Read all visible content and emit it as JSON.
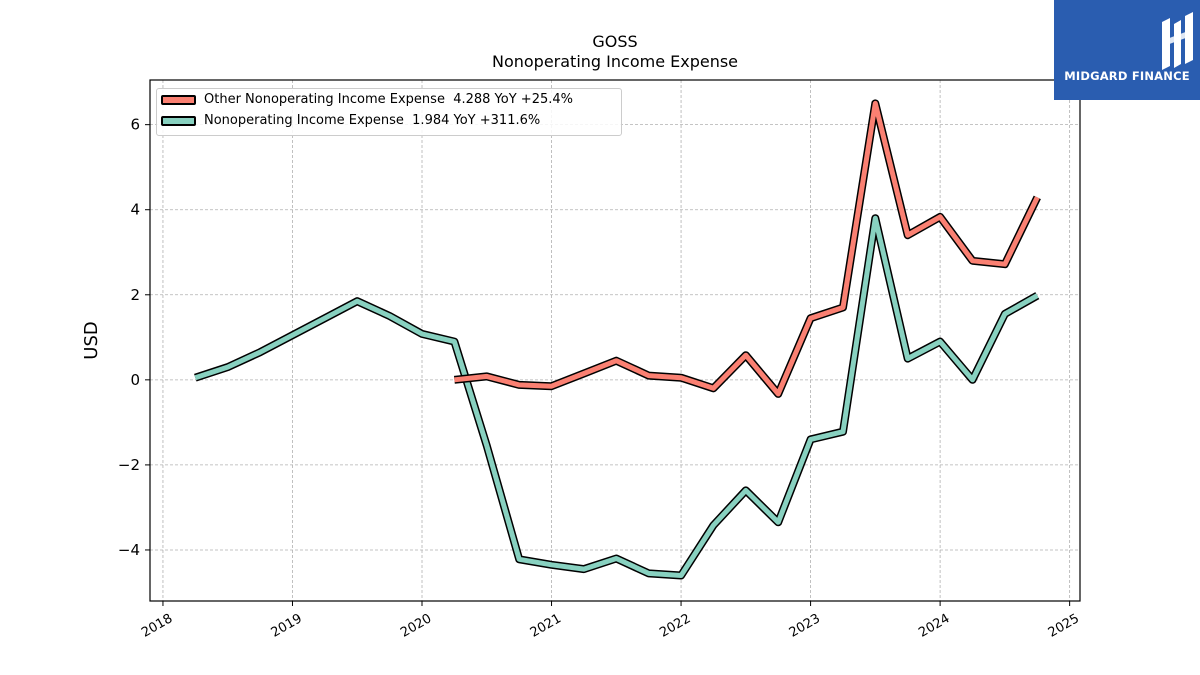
{
  "header": {
    "ticker": "GOSS",
    "subtitle": "Nonoperating Income Expense"
  },
  "brand": {
    "name": "MIDGARD FINANCE",
    "color": "#2a5db0",
    "icon": "midgard-logo-icon"
  },
  "chart_data": {
    "type": "line",
    "title": "GOSS",
    "subtitle": "Nonoperating Income Expense",
    "xlabel": "",
    "ylabel": "USD",
    "xlim": [
      2017.9,
      2025.08
    ],
    "ylim": [
      -5.2,
      7.05
    ],
    "x_ticks": [
      "2018",
      "2019",
      "2020",
      "2021",
      "2022",
      "2023",
      "2024",
      "2025"
    ],
    "y_ticks": [
      6,
      4,
      2,
      0,
      -2,
      -4
    ],
    "y_tick_labels": [
      "6",
      "4",
      "2",
      "0",
      "−2",
      "−4"
    ],
    "grid": true,
    "legend_position": "top-left",
    "series": [
      {
        "name": "Other Nonoperating Income Expense",
        "legend": "Other Nonoperating Income Expense  4.288 YoY +25.4%",
        "color": "#fa8072",
        "x": [
          2020.25,
          2020.5,
          2020.75,
          2021.0,
          2021.25,
          2021.5,
          2021.75,
          2022.0,
          2022.25,
          2022.5,
          2022.75,
          2023.0,
          2023.25,
          2023.5,
          2023.75,
          2024.0,
          2024.25,
          2024.5,
          2024.75
        ],
        "values": [
          0.0,
          0.08,
          -0.12,
          -0.15,
          0.15,
          0.45,
          0.1,
          0.05,
          -0.2,
          0.58,
          -0.33,
          1.45,
          1.7,
          6.5,
          3.4,
          3.83,
          2.8,
          2.72,
          4.29
        ]
      },
      {
        "name": "Nonoperating Income Expense",
        "legend": "Nonoperating Income Expense  1.984 YoY +311.6%",
        "color": "#88d1c0",
        "x": [
          2018.25,
          2018.5,
          2018.75,
          2019.0,
          2019.25,
          2019.5,
          2019.75,
          2020.0,
          2020.25,
          2020.5,
          2020.75,
          2021.0,
          2021.25,
          2021.5,
          2021.75,
          2022.0,
          2022.25,
          2022.5,
          2022.75,
          2023.0,
          2023.25,
          2023.5,
          2023.75,
          2024.0,
          2024.25,
          2024.5,
          2024.75
        ],
        "values": [
          0.05,
          0.3,
          0.65,
          1.05,
          1.45,
          1.85,
          1.5,
          1.08,
          0.9,
          -1.55,
          -4.22,
          -4.35,
          -4.45,
          -4.2,
          -4.55,
          -4.6,
          -3.42,
          -2.6,
          -3.35,
          -1.4,
          -1.22,
          3.8,
          0.5,
          0.9,
          0.0,
          1.55,
          1.98
        ]
      }
    ]
  }
}
